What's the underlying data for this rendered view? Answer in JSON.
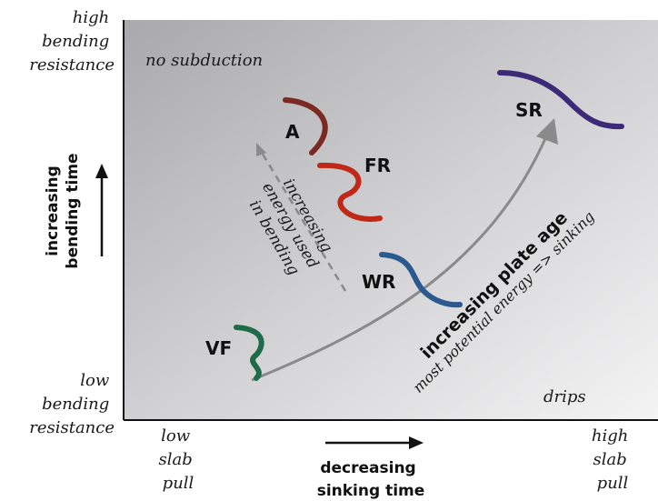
{
  "y_axis": {
    "top_label": [
      "high",
      "bending",
      "resistance"
    ],
    "bottom_label": [
      "low",
      "bending",
      "resistance"
    ],
    "title": [
      "increasing",
      "bending time"
    ]
  },
  "x_axis": {
    "left_label": [
      "low",
      "slab",
      "pull"
    ],
    "right_label": [
      "high",
      "slab",
      "pull"
    ],
    "title": [
      "decreasing",
      "sinking time"
    ]
  },
  "regions": {
    "top_left": "no subduction",
    "bottom_right": "drips"
  },
  "arrows": {
    "energy_bending": [
      "increasing",
      "energy used",
      "in bending"
    ],
    "plate_age": "increasing plate age",
    "potential_energy": "most potential energy => sinking"
  },
  "slabs": {
    "A": {
      "label": "A",
      "color": "#7a2a22"
    },
    "FR": {
      "label": "FR",
      "color": "#c0281a"
    },
    "WR": {
      "label": "WR",
      "color": "#2b5a8f"
    },
    "VF": {
      "label": "VF",
      "color": "#1d6b48"
    },
    "SR": {
      "label": "SR",
      "color": "#3c2a78"
    }
  }
}
